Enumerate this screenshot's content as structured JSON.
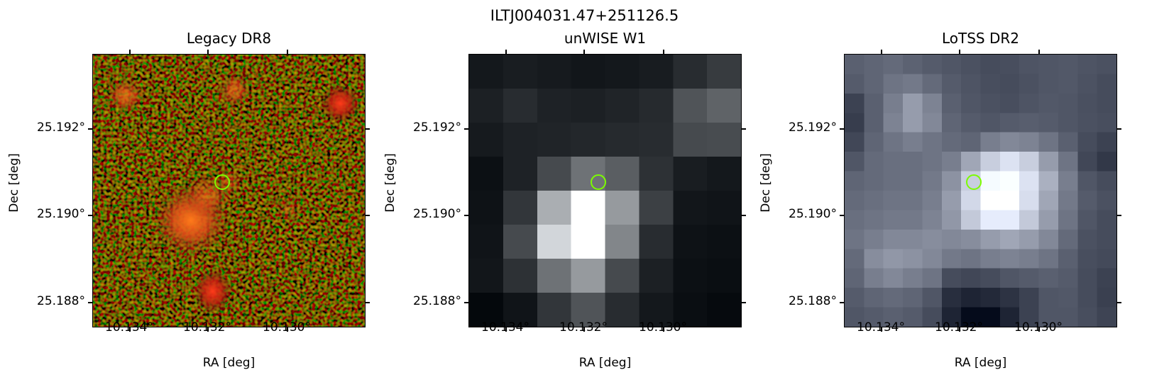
{
  "figure": {
    "title": "ILTJ004031.47+251126.5"
  },
  "panels": [
    {
      "title": "Legacy DR8",
      "xlabel": "RA [deg]",
      "ylabel": "Dec [deg]",
      "xticks": [
        "10.134°",
        "10.132°",
        "10.130°"
      ],
      "yticks": [
        "25.192°",
        "25.190°",
        "25.188°"
      ]
    },
    {
      "title": "unWISE W1",
      "xlabel": "RA [deg]",
      "ylabel": "Dec [deg]",
      "xticks": [
        "10.134°",
        "10.132°",
        "10.130°"
      ],
      "yticks": [
        "25.192°",
        "25.190°",
        "25.188°"
      ]
    },
    {
      "title": "LoTSS DR2",
      "xlabel": "RA [deg]",
      "ylabel": "Dec [deg]",
      "xticks": [
        "10.134°",
        "10.132°",
        "10.130°"
      ],
      "yticks": [
        "25.192°",
        "25.190°",
        "25.188°"
      ]
    }
  ],
  "colors": {
    "marker": "#7cfc00"
  }
}
